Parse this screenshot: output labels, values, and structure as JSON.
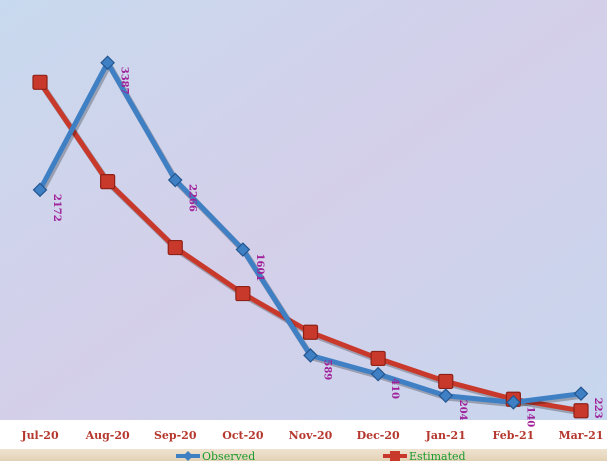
{
  "chart_data": {
    "type": "line",
    "categories": [
      "Jul-20",
      "Aug-20",
      "Sep-20",
      "Oct-20",
      "Nov-20",
      "Dec-20",
      "Jan-21",
      "Feb-21",
      "Mar-21"
    ],
    "series": [
      {
        "name": "Observed",
        "values": [
          2172,
          3387,
          2266,
          1601,
          589,
          410,
          204,
          140,
          223
        ],
        "data_labels": [
          "2172",
          "3387",
          "2266",
          "1601",
          "589",
          "410",
          "204",
          "140",
          "223"
        ],
        "color": "#3f7fc4",
        "marker": "diamond"
      },
      {
        "name": "Estimated",
        "values": [
          3200,
          2250,
          1620,
          1180,
          810,
          560,
          340,
          170,
          60
        ],
        "color": "#c8392c",
        "marker": "square"
      }
    ],
    "ylim": [
      0,
      3700
    ],
    "grid": false,
    "legend": "bottom",
    "colors": {
      "tick_labels": "#b5372e",
      "data_labels": "#a0229a",
      "legend_observed": "#1a9a2a",
      "legend_estimated": "#1a9a2a"
    }
  }
}
